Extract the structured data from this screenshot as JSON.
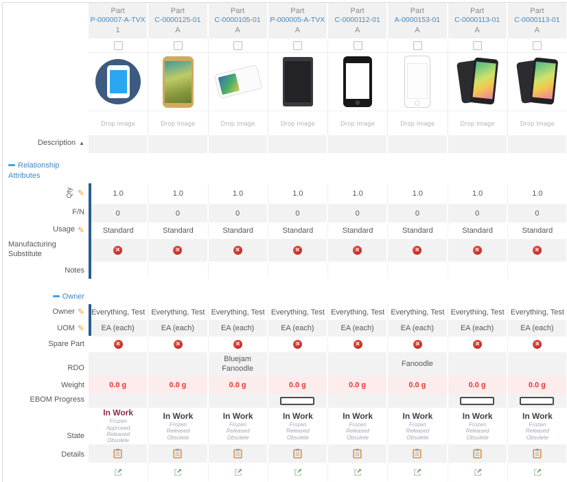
{
  "header": {
    "type_label": "Part"
  },
  "drop_zone_label": "Drop Image",
  "sections": {
    "relationship": {
      "title": "Relationship Attributes"
    },
    "owner": {
      "title": "Owner"
    }
  },
  "row_labels": {
    "description": "Description",
    "qty": "Qty",
    "fn": "F/N",
    "usage": "Usage",
    "mfg_substitute": "Manufacturing Substitute",
    "notes": "Notes",
    "owner": "Owner",
    "uom": "UOM",
    "spare_part": "Spare Part",
    "rdo": "RDO",
    "weight": "Weight",
    "ebom_progress": "EBOM Progress",
    "state": "State",
    "details": "Details"
  },
  "colors": {
    "link_blue": "#4b86b8",
    "section_blue": "#4187c0",
    "bar_blue": "#275d8d",
    "error_red": "#bd1a14",
    "weight_red": "#e53935",
    "weight_bg": "#fdecec",
    "pencil_orange": "#efa02e",
    "clipboard_orange": "#e0882f",
    "expand_green": "#62b152",
    "state_maroon": "#8e2a4a",
    "state_dark": "#3f3f42"
  },
  "columns": [
    {
      "type": "Part",
      "number": "P-000007-A-TVX",
      "revision": "1",
      "image": "blue-circle-icon",
      "qty": "1.0",
      "fn": "0",
      "usage": "Standard",
      "mfg_substitute": "no",
      "notes": "",
      "owner": "Everything, Test",
      "uom": "EA (each)",
      "spare_part": "no",
      "rdo": "",
      "weight": "0.0 g",
      "ebom_progress_bar": false,
      "state": {
        "current": "In Work",
        "current_color": "#8e2a4a",
        "others": [
          "Frozen",
          "Approved",
          "Released",
          "Obsolete"
        ]
      }
    },
    {
      "type": "Part",
      "number": "C-0000125-01",
      "revision": "A",
      "image": "gold-phone",
      "qty": "1.0",
      "fn": "0",
      "usage": "Standard",
      "mfg_substitute": "no",
      "notes": "",
      "owner": "Everything, Test",
      "uom": "EA (each)",
      "spare_part": "no",
      "rdo": "",
      "weight": "0.0 g",
      "ebom_progress_bar": false,
      "state": {
        "current": "In Work",
        "current_color": "#3f3f42",
        "others": [
          "Frozen",
          "Released",
          "Obsolete"
        ]
      }
    },
    {
      "type": "Part",
      "number": "C-0000105-01",
      "revision": "A",
      "image": "white-phone-angled",
      "qty": "1.0",
      "fn": "0",
      "usage": "Standard",
      "mfg_substitute": "no",
      "notes": "",
      "owner": "Everything, Test",
      "uom": "EA (each)",
      "spare_part": "no",
      "rdo": "Bluejam Fanoodle",
      "weight": "0.0 g",
      "ebom_progress_bar": false,
      "state": {
        "current": "In Work",
        "current_color": "#3f3f42",
        "others": [
          "Frozen",
          "Released",
          "Obsolete"
        ]
      }
    },
    {
      "type": "Part",
      "number": "P-000005-A-TVX",
      "revision": "A",
      "image": "black-tablet",
      "qty": "1.0",
      "fn": "0",
      "usage": "Standard",
      "mfg_substitute": "no",
      "notes": "",
      "owner": "Everything, Test",
      "uom": "EA (each)",
      "spare_part": "no",
      "rdo": "",
      "weight": "0.0 g",
      "ebom_progress_bar": true,
      "state": {
        "current": "In Work",
        "current_color": "#3f3f42",
        "others": [
          "Frozen",
          "Released",
          "Obsolete"
        ]
      }
    },
    {
      "type": "Part",
      "number": "C-0000112-01",
      "revision": "A",
      "image": "black-iphone",
      "qty": "1.0",
      "fn": "0",
      "usage": "Standard",
      "mfg_substitute": "no",
      "notes": "",
      "owner": "Everything, Test",
      "uom": "EA (each)",
      "spare_part": "no",
      "rdo": "",
      "weight": "0.0 g",
      "ebom_progress_bar": false,
      "state": {
        "current": "In Work",
        "current_color": "#3f3f42",
        "others": [
          "Frozen",
          "Released",
          "Obsolete"
        ]
      }
    },
    {
      "type": "Part",
      "number": "A-0000153-01",
      "revision": "A",
      "image": "white-iphone",
      "qty": "1.0",
      "fn": "0",
      "usage": "Standard",
      "mfg_substitute": "no",
      "notes": "",
      "owner": "Everything, Test",
      "uom": "EA (each)",
      "spare_part": "no",
      "rdo": "Fanoodle",
      "weight": "0.0 g",
      "ebom_progress_bar": false,
      "state": {
        "current": "In Work",
        "current_color": "#3f3f42",
        "others": [
          "Frozen",
          "Released",
          "Obsolete"
        ]
      }
    },
    {
      "type": "Part",
      "number": "C-0000113-01",
      "revision": "A",
      "image": "duo-phone-rainbow",
      "qty": "1.0",
      "fn": "0",
      "usage": "Standard",
      "mfg_substitute": "no",
      "notes": "",
      "owner": "Everything, Test",
      "uom": "EA (each)",
      "spare_part": "no",
      "rdo": "",
      "weight": "0.0 g",
      "ebom_progress_bar": true,
      "state": {
        "current": "In Work",
        "current_color": "#3f3f42",
        "others": [
          "Frozen",
          "Released",
          "Obsolete"
        ]
      }
    },
    {
      "type": "Part",
      "number": "C-0000113-01",
      "revision": "A",
      "image": "duo-phone-rainbow",
      "qty": "1.0",
      "fn": "0",
      "usage": "Standard",
      "mfg_substitute": "no",
      "notes": "",
      "owner": "Everything, Test",
      "uom": "EA (each)",
      "spare_part": "no",
      "rdo": "",
      "weight": "0.0 g",
      "ebom_progress_bar": true,
      "state": {
        "current": "In Work",
        "current_color": "#3f3f42",
        "others": [
          "Frozen",
          "Released",
          "Obsolete"
        ]
      }
    }
  ]
}
